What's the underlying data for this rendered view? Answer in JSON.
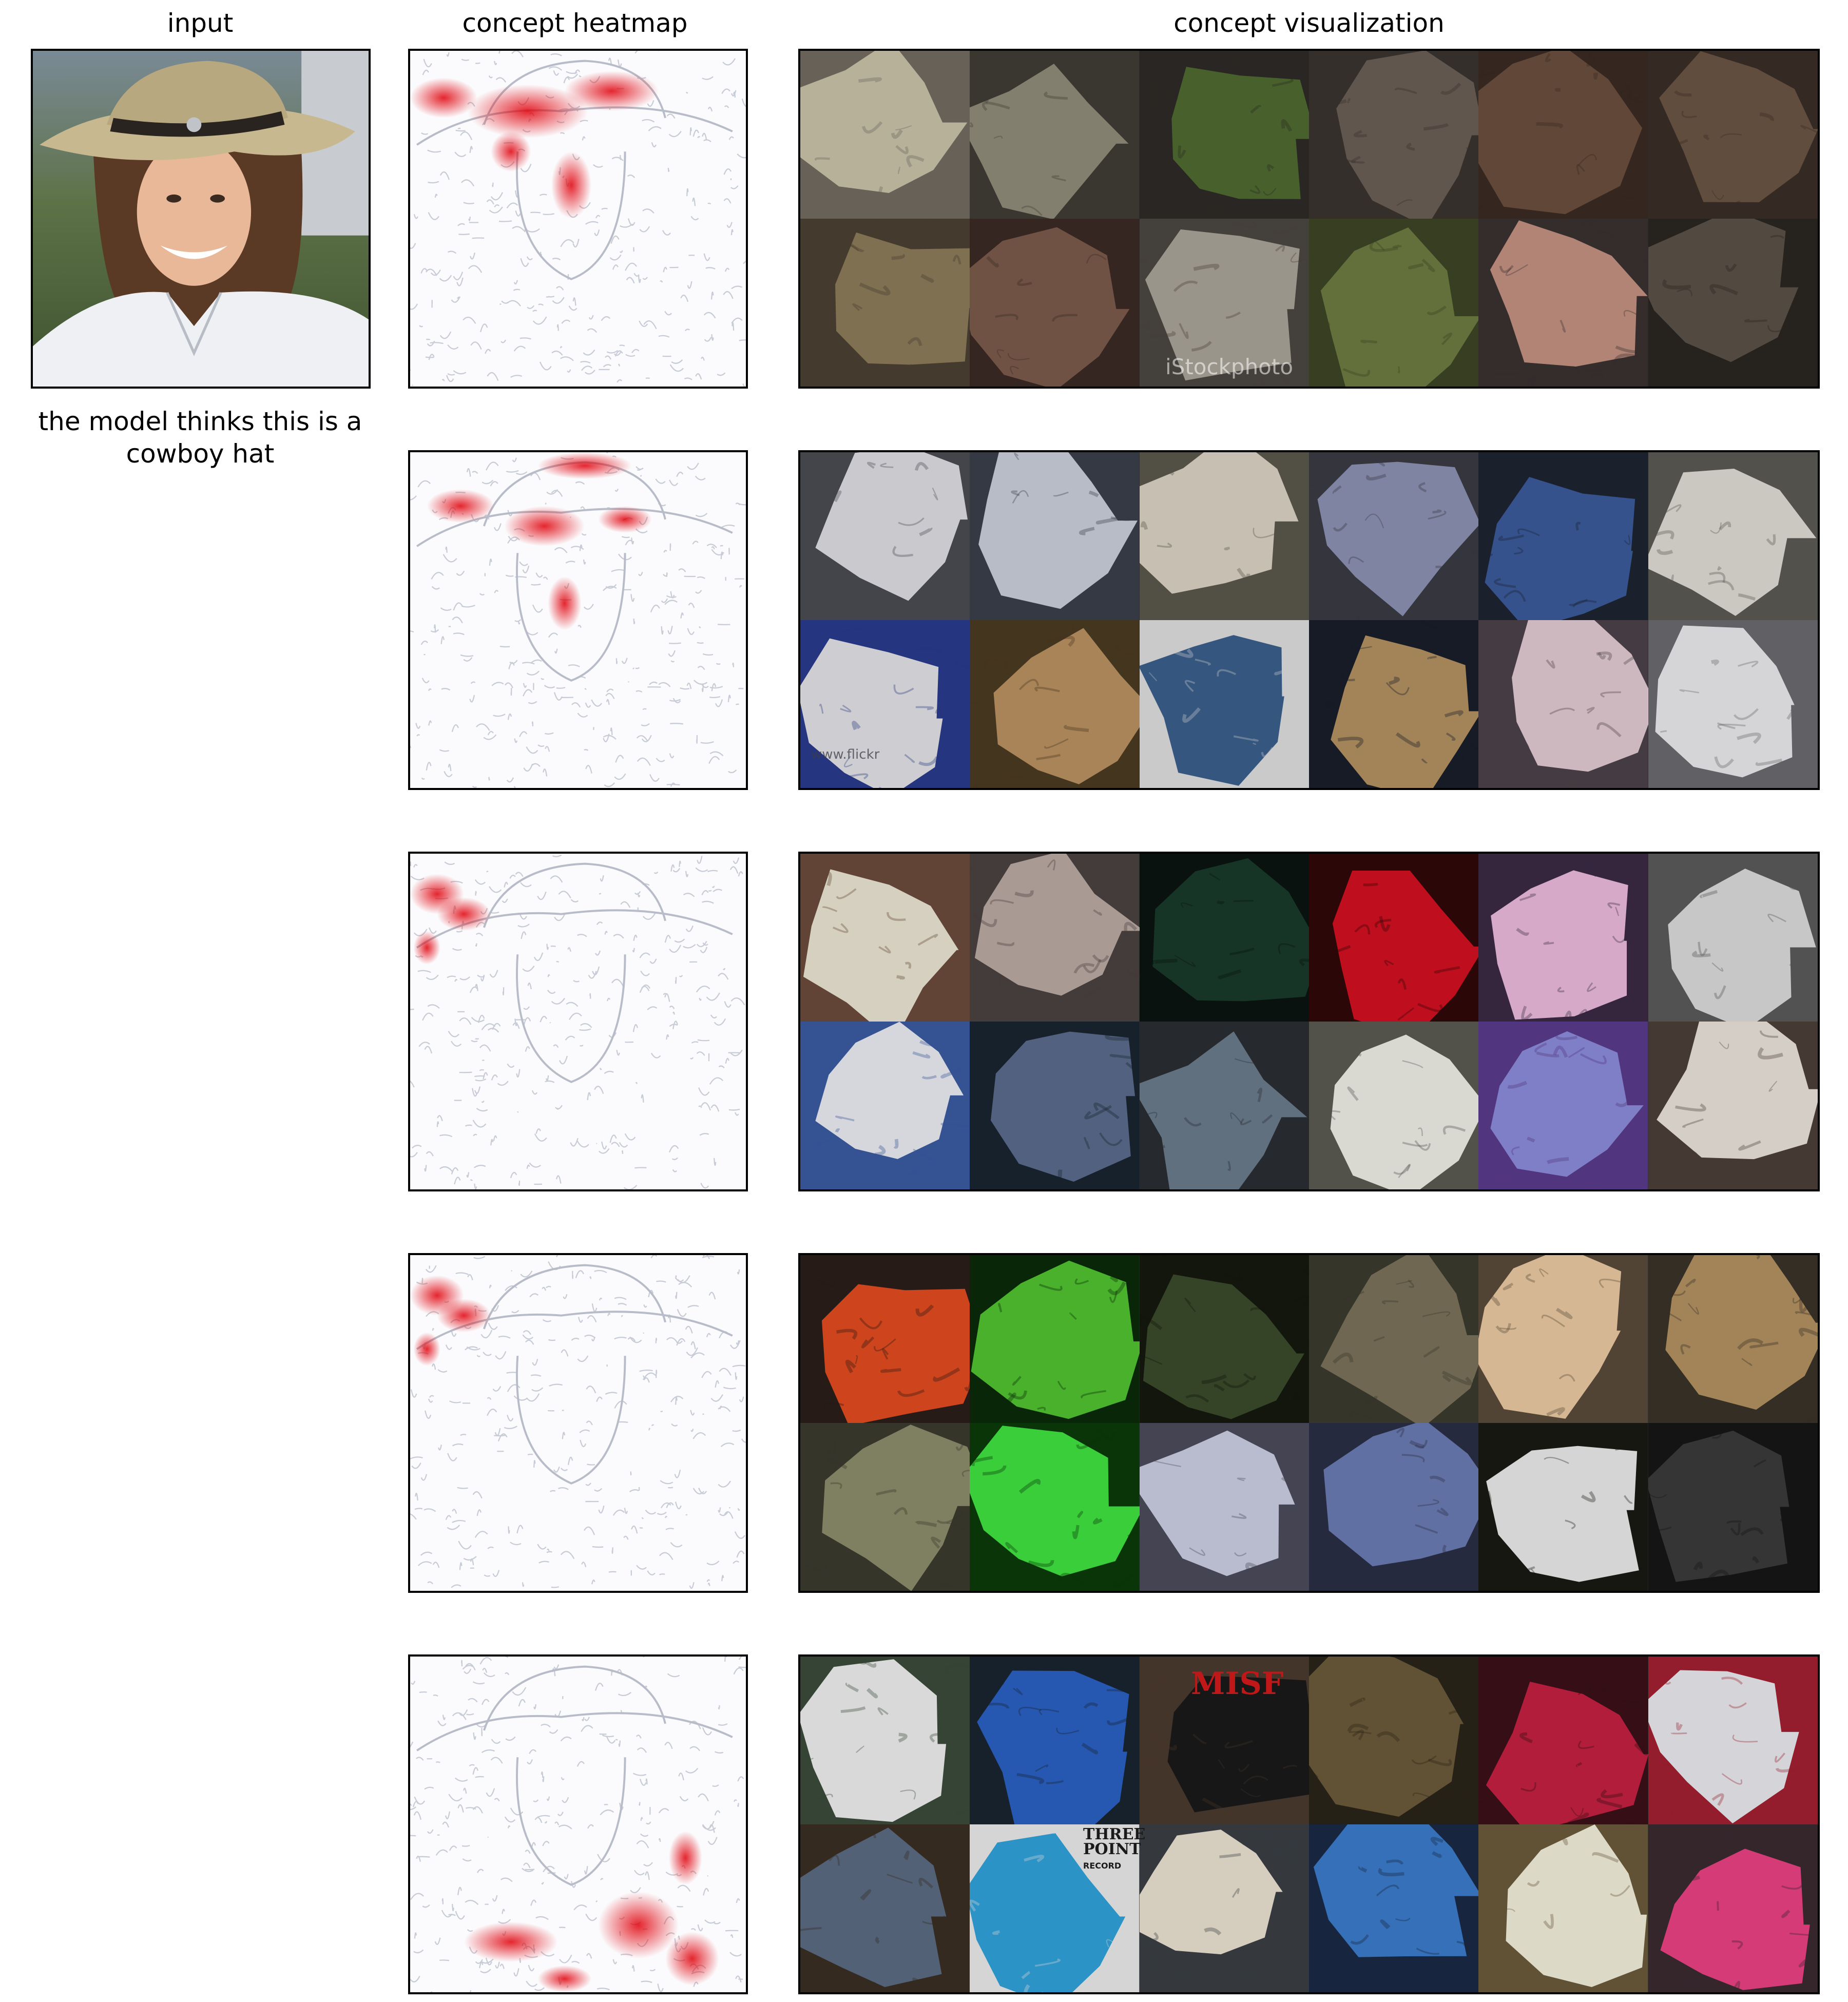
{
  "columns": {
    "input": "input",
    "heatmap": "concept heatmap",
    "visualization": "concept visualization"
  },
  "caption": {
    "line1": "the model thinks this is a",
    "line2": "cowboy hat"
  },
  "visualization_watermarks": {
    "stock": "iStockphoto",
    "flickr": "www.flickr",
    "shirt_misfits": "MISF",
    "shirt_three_point": "THREE POINT",
    "shirt_records": "RECORD"
  },
  "colors": {
    "heat": "#e0000a",
    "border": "#000000",
    "heat_background": "#fbfbfd",
    "edge_lines": "#c8ccd6"
  },
  "concepts": [
    {
      "heat_focus": "hat-brim-crown",
      "tiles": [
        [
          "#c8c0a8",
          "#706a60"
        ],
        [
          "#8f8a78",
          "#3e3c34"
        ],
        [
          "#4f6a30",
          "#2e2a26"
        ],
        [
          "#6a5e54",
          "#3a3430"
        ],
        [
          "#6a4e3c",
          "#3a2a22"
        ],
        [
          "#6a5444",
          "#3a2e26"
        ],
        [
          "#8a7a5a",
          "#4a4032"
        ],
        [
          "#7a5a4a",
          "#3a2a24"
        ],
        [
          "#a8a296",
          "#4a4640"
        ],
        [
          "#6c7a40",
          "#3c4424"
        ],
        [
          "#c09080",
          "#3a3030"
        ],
        [
          "#5a5046",
          "#2a2622"
        ]
      ]
    },
    {
      "heat_focus": "hat-band-top",
      "tiles": [
        [
          "#dcdce0",
          "#4a4a52"
        ],
        [
          "#c8ccd8",
          "#3a3e4a"
        ],
        [
          "#d8d0c0",
          "#5a564a"
        ],
        [
          "#8a90b0",
          "#3a3a44"
        ],
        [
          "#3a5a9a",
          "#1e2430"
        ],
        [
          "#dcdad2",
          "#5a5852"
        ],
        [
          "#e0e0e4",
          "#2a3a8a"
        ],
        [
          "#b89060",
          "#4a3a22"
        ],
        [
          "#3a5e8a",
          "#dcdcdc"
        ],
        [
          "#b09060",
          "#1a1e2a"
        ],
        [
          "#e0c8d0",
          "#4a4248"
        ],
        [
          "#e8e8ea",
          "#6a6a6e"
        ]
      ]
    },
    {
      "heat_focus": "hat-left-brim",
      "tiles": [
        [
          "#e8e2d0",
          "#6a4a3a"
        ],
        [
          "#b8a8a0",
          "#4a4040"
        ],
        [
          "#1a3a2a",
          "#0a1410"
        ],
        [
          "#d01020",
          "#300808"
        ],
        [
          "#e8b8d8",
          "#3a2a44"
        ],
        [
          "#d8d8d8",
          "#5a5a5a"
        ],
        [
          "#e8eaf0",
          "#3a5aa0"
        ],
        [
          "#5a6a8a",
          "#1a2430"
        ],
        [
          "#6a7a8a",
          "#2a2e34"
        ],
        [
          "#ecece4",
          "#5a5a52"
        ],
        [
          "#8a8ad8",
          "#5a3a8a"
        ],
        [
          "#e8e0d8",
          "#4a3e38"
        ]
      ]
    },
    {
      "heat_focus": "hat-left-brim",
      "tiles": [
        [
          "#e04a20",
          "#2a1e1a"
        ],
        [
          "#50c030",
          "#0a2a0a"
        ],
        [
          "#3a4a2a",
          "#14180e"
        ],
        [
          "#7a705a",
          "#3a3a2e"
        ],
        [
          "#e8c8a0",
          "#5a4a3a"
        ],
        [
          "#b09060",
          "#3a3228"
        ],
        [
          "#8a8a6a",
          "#3a3a2e"
        ],
        [
          "#40e040",
          "#0a3a0a"
        ],
        [
          "#c8cce0",
          "#4a4a5a"
        ],
        [
          "#6a7ab0",
          "#2a2e44"
        ],
        [
          "#e8e8e8",
          "#1a1a14"
        ],
        [
          "#3a3a3a",
          "#161616"
        ]
      ]
    },
    {
      "heat_focus": "shirt-collar",
      "tiles": [
        [
          "#ececec",
          "#3a4a3a"
        ],
        [
          "#2a60c0",
          "#1a2430"
        ],
        [
          "#1a1a1a",
          "#4a3a2e"
        ],
        [
          "#6a5a3a",
          "#2a2418"
        ],
        [
          "#c02040",
          "#3a1018"
        ],
        [
          "#e8e8ec",
          "#a02030"
        ],
        [
          "#5a6a80",
          "#3a2e22"
        ],
        [
          "#30a0d8",
          "#e8e8e8"
        ],
        [
          "#e8e0d0",
          "#3a3e44"
        ],
        [
          "#3a7ac8",
          "#1a2a44"
        ],
        [
          "#f0ecd8",
          "#6a5a3a"
        ],
        [
          "#e84080",
          "#3a2a30"
        ]
      ]
    }
  ]
}
